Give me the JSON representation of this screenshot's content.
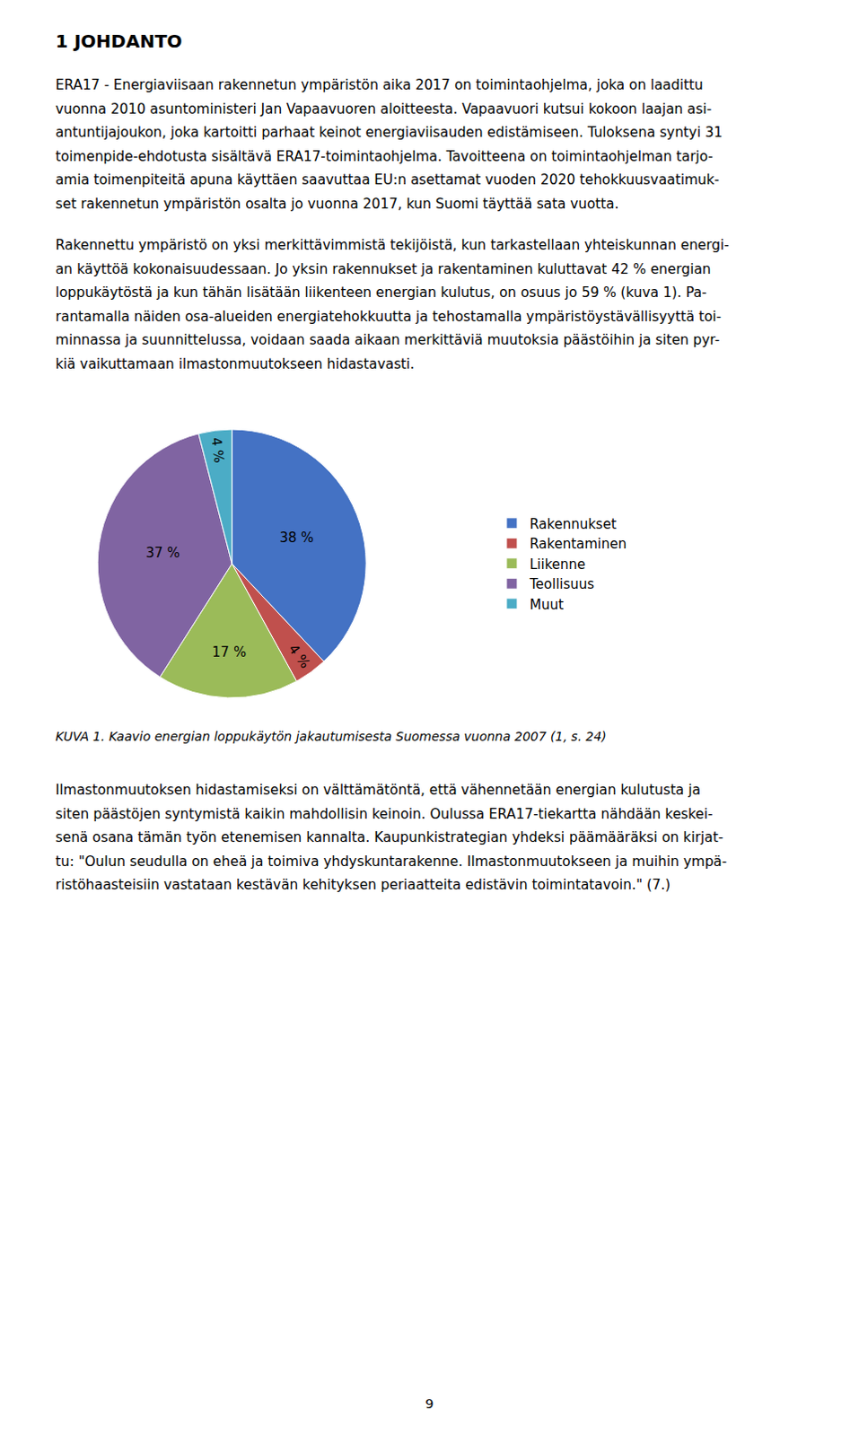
{
  "title": "1 JOHDANTO",
  "text_before": [
    [
      "ERA17 - Energiaviisaan rakennetun ympäristön aika 2017 on toimintaohjelma, joka on laadittu",
      "vuonna 2010 asuntoministeri Jan Vapaavuoren aloitteesta. Vapaavuori kutsui kokoon laajan asi-",
      "antuntijajoukon, joka kartoitti parhaat keinot energiaviisauden edistämiseen. Tuloksena syntyi 31",
      "toimenpide-ehdotusta sisältävä ERA17-toimintaohjelma. Tavoitteena on toimintaohjelman tarjo-",
      "amia toimenpiteitä apuna käyttäen saavuttaa EU:n asettamat vuoden 2020 tehokkuusvaatimuk-",
      "set rakennetun ympäristön osalta jo vuonna 2017, kun Suomi täyttää sata vuotta."
    ],
    [
      "Rakennettu ympäristö on yksi merkittävimmistä tekijöistä, kun tarkastellaan yhteiskunnan energi-",
      "an käyttöä kokonaisuudessaan. Jo yksin rakennukset ja rakentaminen kuluttavat 42 % energian",
      "loppukäytöstä ja kun tähän lisätään liikenteen energian kulutus, on osuus jo 59 % (kuva 1). Pa-",
      "rantamalla näiden osa-alueiden energiatehokkuutta ja tehostamalla ympäristöystävällisyyttä toi-",
      "minnassa ja suunnittelussa, voidaan saada aikaan merkittäviä muutoksia päästöihin ja siten pyr-",
      "kiä vaikuttamaan ilmastonmuutokseen hidastavasti."
    ]
  ],
  "caption": "KUVA 1. Kaavio energian loppukäytön jakautumisesta Suomessa vuonna 2007 (1, s. 24)",
  "text_after": [
    [
      "Ilmastonmuutoksen hidastamiseksi on välttämätöntä, että vähennetään energian kulutusta ja",
      "siten päästöjen syntymistä kaikin mahdollisin keinoin. Oulussa ERA17-tiekartta nähdään keskei-",
      "senä osana tämän työn etenemisen kannalta. Kaupunkistrategian yhdeksi päämääräksi on kirjat-",
      "tu: \"Oulun seudulla on eheä ja toimiva yhdyskuntarakenne. Ilmastonmuutokseen ja muihin ympä-",
      "ristöhaasteisiin vastataan kestävän kehityksen periaatteita edistävin toimintatavoin.\" (7.)"
    ]
  ],
  "page_number": "9",
  "chart_data": {
    "type": "pie",
    "categories": [
      "Rakennukset",
      "Rakentaminen",
      "Liikenne",
      "Teollisuus",
      "Muut"
    ],
    "values": [
      38,
      4,
      17,
      37,
      4
    ],
    "value_labels": [
      "38 %",
      "4 %",
      "17 %",
      "37 %",
      "4 %"
    ],
    "colors": [
      "#4472C4",
      "#C0504D",
      "#9BBB59",
      "#8064A2",
      "#4BACC6"
    ],
    "data_labels": true,
    "legend": "right"
  }
}
